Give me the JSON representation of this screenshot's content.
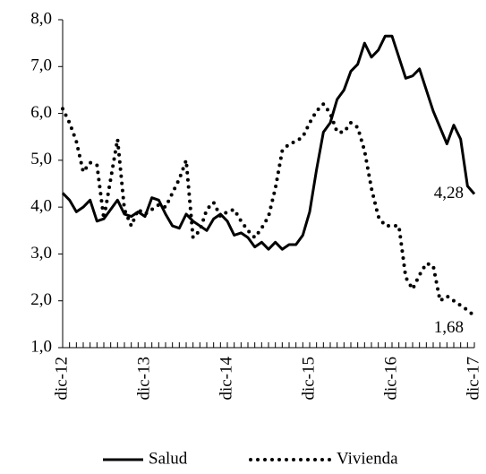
{
  "chart_data": {
    "type": "line",
    "categories": [
      "dic-12",
      null,
      null,
      null,
      null,
      null,
      null,
      null,
      null,
      null,
      null,
      null,
      "dic-13",
      null,
      null,
      null,
      null,
      null,
      null,
      null,
      null,
      null,
      null,
      null,
      "dic-14",
      null,
      null,
      null,
      null,
      null,
      null,
      null,
      null,
      null,
      null,
      null,
      "dic-15",
      null,
      null,
      null,
      null,
      null,
      null,
      null,
      null,
      null,
      null,
      null,
      "dic-16",
      null,
      null,
      null,
      null,
      null,
      null,
      null,
      null,
      null,
      null,
      null,
      "dic-17"
    ],
    "series": [
      {
        "name": "Salud",
        "color": "#000000",
        "dash": "solid",
        "values": [
          4.3,
          4.15,
          3.9,
          4.0,
          4.15,
          3.7,
          3.75,
          3.95,
          4.15,
          3.85,
          3.8,
          3.9,
          3.8,
          4.2,
          4.15,
          3.85,
          3.6,
          3.55,
          3.85,
          3.7,
          3.6,
          3.5,
          3.75,
          3.85,
          3.7,
          3.4,
          3.45,
          3.35,
          3.15,
          3.25,
          3.1,
          3.25,
          3.1,
          3.2,
          3.2,
          3.4,
          3.9,
          4.8,
          5.6,
          5.8,
          6.3,
          6.5,
          6.9,
          7.05,
          7.5,
          7.2,
          7.35,
          7.65,
          7.65,
          7.2,
          6.75,
          6.8,
          6.95,
          6.5,
          6.05,
          5.7,
          5.35,
          5.75,
          5.45,
          4.45,
          4.28
        ],
        "value_labels": [
          null,
          null,
          null,
          null,
          null,
          null,
          null,
          null,
          null,
          null,
          null,
          null,
          null,
          null,
          null,
          null,
          null,
          null,
          null,
          null,
          null,
          null,
          null,
          null,
          null,
          null,
          null,
          null,
          null,
          null,
          null,
          null,
          null,
          null,
          null,
          null,
          null,
          null,
          null,
          null,
          null,
          null,
          null,
          null,
          null,
          null,
          null,
          null,
          null,
          null,
          null,
          null,
          null,
          null,
          null,
          null,
          null,
          null,
          null,
          null,
          "4,28"
        ]
      },
      {
        "name": "Vivienda",
        "color": "#000000",
        "dash": "dotted",
        "values": [
          6.1,
          5.8,
          5.4,
          4.75,
          4.95,
          4.9,
          3.75,
          4.6,
          5.45,
          3.95,
          3.6,
          3.95,
          3.85,
          3.95,
          4.05,
          4.0,
          4.3,
          4.6,
          5.0,
          3.35,
          3.5,
          3.95,
          4.1,
          3.8,
          3.9,
          3.95,
          3.7,
          3.5,
          3.35,
          3.55,
          3.8,
          4.4,
          5.2,
          5.35,
          5.4,
          5.5,
          5.8,
          6.05,
          6.2,
          6.0,
          5.6,
          5.6,
          5.8,
          5.7,
          5.2,
          4.4,
          3.8,
          3.6,
          3.6,
          3.6,
          2.5,
          2.25,
          2.55,
          2.8,
          2.75,
          2.0,
          2.1,
          2.0,
          1.9,
          1.8,
          1.68
        ],
        "value_labels": [
          null,
          null,
          null,
          null,
          null,
          null,
          null,
          null,
          null,
          null,
          null,
          null,
          null,
          null,
          null,
          null,
          null,
          null,
          null,
          null,
          null,
          null,
          null,
          null,
          null,
          null,
          null,
          null,
          null,
          null,
          null,
          null,
          null,
          null,
          null,
          null,
          null,
          null,
          null,
          null,
          null,
          null,
          null,
          null,
          null,
          null,
          null,
          null,
          null,
          null,
          null,
          null,
          null,
          null,
          null,
          null,
          null,
          null,
          null,
          null,
          "1,68"
        ]
      }
    ],
    "ylim": [
      1,
      8
    ],
    "yticks": [
      {
        "value": 1,
        "label": "1,0"
      },
      {
        "value": 2,
        "label": "2,0"
      },
      {
        "value": 3,
        "label": "3,0"
      },
      {
        "value": 4,
        "label": "4,0"
      },
      {
        "value": 5,
        "label": "5,0"
      },
      {
        "value": 6,
        "label": "6,0"
      },
      {
        "value": 7,
        "label": "7,0"
      },
      {
        "value": 8,
        "label": "8,0"
      }
    ],
    "grid": false,
    "legend": "bottom"
  }
}
